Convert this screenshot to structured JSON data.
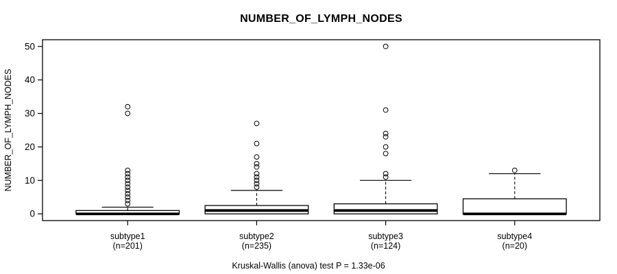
{
  "chart_data": {
    "type": "boxplot",
    "title": "NUMBER_OF_LYMPH_NODES",
    "ylabel": "NUMBER_OF_LYMPH_NODES",
    "xlabel": "",
    "footnote": "Kruskal-Wallis (anova) test P = 1.33e-06",
    "ylim": [
      0,
      50
    ],
    "yticks": [
      0,
      10,
      20,
      30,
      40,
      50
    ],
    "grid": false,
    "legend": "none",
    "colors": {
      "stroke": "#000000",
      "box_fill": "#ffffff",
      "background": "#ffffff",
      "text": "#000000"
    },
    "groups": [
      {
        "label": "subtype1",
        "n_label": "(n=201)",
        "n": 201,
        "whisker_low": 0,
        "q1": 0,
        "median": 0,
        "q3": 1,
        "whisker_high": 2,
        "outliers": [
          3,
          4,
          5,
          6,
          7,
          8,
          9,
          10,
          11,
          12,
          13,
          30,
          32
        ]
      },
      {
        "label": "subtype2",
        "n_label": "(n=235)",
        "n": 235,
        "whisker_low": 0,
        "q1": 0,
        "median": 1,
        "q3": 2.5,
        "whisker_high": 7,
        "outliers": [
          8,
          9,
          10,
          11,
          12,
          14,
          15,
          17,
          21,
          27
        ]
      },
      {
        "label": "subtype3",
        "n_label": "(n=124)",
        "n": 124,
        "whisker_low": 0,
        "q1": 0,
        "median": 1,
        "q3": 3,
        "whisker_high": 10,
        "outliers": [
          11,
          12,
          18,
          20,
          23,
          24,
          31,
          50
        ]
      },
      {
        "label": "subtype4",
        "n_label": "(n=20)",
        "n": 20,
        "whisker_low": 0,
        "q1": 0,
        "median": 0,
        "q3": 4.5,
        "whisker_high": 12,
        "outliers": [
          13
        ]
      }
    ]
  }
}
